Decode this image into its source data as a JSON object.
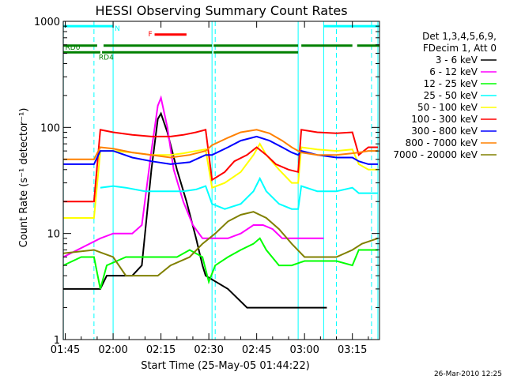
{
  "title": "HESSI Observing Summary Count Rates",
  "xlabel": "Start Time (25-May-05 01:44:22)",
  "ylabel": "Count Rate (s⁻¹ detector⁻¹)",
  "timestamp": "26-Mar-2010 12:25",
  "legend_header": [
    "Det 1,3,4,5,6,9,",
    "FDecim 1, Att 0"
  ],
  "chart_data": {
    "type": "line",
    "title": "HESSI Observing Summary Count Rates",
    "xlabel": "Start Time (25-May-05 01:44:22)",
    "ylabel": "Count Rate (s⁻¹ detector⁻¹)",
    "yscale": "log",
    "ylim": [
      1,
      1000
    ],
    "xlim_minutes": [
      104.37,
      203.5
    ],
    "x_unit": "minutes after 00:00 UT",
    "xticks": [
      {
        "label": "01:45",
        "t": 105
      },
      {
        "label": "02:00",
        "t": 120
      },
      {
        "label": "02:15",
        "t": 135
      },
      {
        "label": "02:30",
        "t": 150
      },
      {
        "label": "02:45",
        "t": 165
      },
      {
        "label": "03:00",
        "t": 180
      },
      {
        "label": "03:15",
        "t": 195
      }
    ],
    "yticks": [
      {
        "label": "1",
        "v": 1
      },
      {
        "label": "10",
        "v": 10
      },
      {
        "label": "100",
        "v": 100
      },
      {
        "label": "1000",
        "v": 1000
      }
    ],
    "legend_position": "right",
    "series": [
      {
        "name": "3 - 6 keV",
        "color": "#000000",
        "points": [
          [
            104.4,
            3
          ],
          [
            116,
            3
          ],
          [
            118,
            4
          ],
          [
            122,
            4
          ],
          [
            126,
            4
          ],
          [
            129,
            5
          ],
          [
            132,
            40
          ],
          [
            134,
            120
          ],
          [
            135,
            135
          ],
          [
            137,
            90
          ],
          [
            140,
            40
          ],
          [
            143,
            20
          ],
          [
            146,
            9
          ],
          [
            148,
            5
          ],
          [
            149,
            4
          ],
          [
            156,
            3
          ],
          [
            162,
            2
          ],
          [
            168,
            2
          ],
          [
            172,
            2
          ],
          [
            176,
            2
          ],
          [
            180,
            2
          ],
          [
            184,
            2
          ],
          [
            187,
            2
          ]
        ]
      },
      {
        "name": "6 - 12 keV",
        "color": "#ff00ff",
        "points": [
          [
            104.4,
            6
          ],
          [
            116,
            9
          ],
          [
            120,
            10
          ],
          [
            126,
            10
          ],
          [
            129,
            12
          ],
          [
            132,
            60
          ],
          [
            134,
            160
          ],
          [
            135,
            190
          ],
          [
            137,
            100
          ],
          [
            139,
            40
          ],
          [
            142,
            20
          ],
          [
            145,
            12
          ],
          [
            148,
            9
          ],
          [
            152,
            9
          ],
          [
            156,
            9
          ],
          [
            160,
            10
          ],
          [
            164,
            12
          ],
          [
            167,
            12
          ],
          [
            170,
            11
          ],
          [
            173,
            9
          ],
          [
            176,
            9
          ],
          [
            180,
            9
          ],
          [
            186,
            9
          ]
        ]
      },
      {
        "name": "12 - 25 keV",
        "color": "#00ff00",
        "points": [
          [
            104.4,
            5
          ],
          [
            110,
            6
          ],
          [
            114,
            6
          ],
          [
            116,
            3
          ],
          [
            118,
            5
          ],
          [
            124,
            6
          ],
          [
            130,
            6
          ],
          [
            136,
            6
          ],
          [
            140,
            6
          ],
          [
            144,
            7
          ],
          [
            148,
            6
          ],
          [
            150,
            3.5
          ],
          [
            152,
            5
          ],
          [
            156,
            6
          ],
          [
            160,
            7
          ],
          [
            164,
            8
          ],
          [
            166,
            9
          ],
          [
            168,
            7
          ],
          [
            172,
            5
          ],
          [
            176,
            5
          ],
          [
            180,
            5.5
          ],
          [
            184,
            5.5
          ],
          [
            190,
            5.5
          ],
          [
            195,
            5
          ],
          [
            197,
            7
          ],
          [
            203,
            7
          ]
        ]
      },
      {
        "name": "25 - 50 keV",
        "color": "#00ffff",
        "points": [
          [
            116,
            27
          ],
          [
            120,
            28
          ],
          [
            124,
            27
          ],
          [
            130,
            25
          ],
          [
            136,
            25
          ],
          [
            142,
            25
          ],
          [
            146,
            26
          ],
          [
            149,
            28
          ],
          [
            151,
            19
          ],
          [
            155,
            17
          ],
          [
            160,
            19
          ],
          [
            164,
            25
          ],
          [
            166,
            33
          ],
          [
            168,
            25
          ],
          [
            172,
            19
          ],
          [
            176,
            17
          ],
          [
            178,
            17
          ],
          [
            179,
            28
          ],
          [
            184,
            25
          ],
          [
            190,
            25
          ],
          [
            195,
            27
          ],
          [
            197,
            24
          ],
          [
            203,
            24
          ]
        ]
      },
      {
        "name": "50 - 100 keV",
        "color": "#ffff00",
        "points": [
          [
            104.4,
            14
          ],
          [
            114,
            14
          ],
          [
            116,
            60
          ],
          [
            120,
            60
          ],
          [
            126,
            58
          ],
          [
            132,
            55
          ],
          [
            138,
            55
          ],
          [
            142,
            57
          ],
          [
            146,
            60
          ],
          [
            149,
            62
          ],
          [
            151,
            27
          ],
          [
            155,
            30
          ],
          [
            160,
            38
          ],
          [
            164,
            55
          ],
          [
            166,
            70
          ],
          [
            168,
            55
          ],
          [
            172,
            40
          ],
          [
            176,
            30
          ],
          [
            178,
            30
          ],
          [
            179,
            65
          ],
          [
            184,
            62
          ],
          [
            190,
            60
          ],
          [
            195,
            62
          ],
          [
            197,
            45
          ],
          [
            200,
            40
          ],
          [
            203,
            40
          ]
        ]
      },
      {
        "name": "100 - 300 keV",
        "color": "#ff0000",
        "points": [
          [
            104.4,
            20
          ],
          [
            114,
            20
          ],
          [
            116,
            95
          ],
          [
            120,
            90
          ],
          [
            126,
            85
          ],
          [
            132,
            82
          ],
          [
            138,
            82
          ],
          [
            142,
            85
          ],
          [
            146,
            90
          ],
          [
            149,
            95
          ],
          [
            151,
            32
          ],
          [
            155,
            38
          ],
          [
            158,
            48
          ],
          [
            162,
            55
          ],
          [
            165,
            65
          ],
          [
            168,
            55
          ],
          [
            171,
            45
          ],
          [
            175,
            40
          ],
          [
            178,
            38
          ],
          [
            179,
            95
          ],
          [
            184,
            90
          ],
          [
            190,
            88
          ],
          [
            195,
            90
          ],
          [
            197,
            55
          ],
          [
            200,
            65
          ],
          [
            203,
            65
          ]
        ]
      },
      {
        "name": "300 - 800 keV",
        "color": "#0000ff",
        "points": [
          [
            104.4,
            45
          ],
          [
            114,
            45
          ],
          [
            116,
            60
          ],
          [
            120,
            60
          ],
          [
            126,
            52
          ],
          [
            132,
            48
          ],
          [
            138,
            45
          ],
          [
            144,
            47
          ],
          [
            149,
            55
          ],
          [
            151,
            55
          ],
          [
            156,
            65
          ],
          [
            160,
            75
          ],
          [
            165,
            82
          ],
          [
            169,
            75
          ],
          [
            173,
            65
          ],
          [
            176,
            58
          ],
          [
            178,
            55
          ],
          [
            179,
            60
          ],
          [
            184,
            55
          ],
          [
            190,
            52
          ],
          [
            195,
            52
          ],
          [
            197,
            48
          ],
          [
            200,
            45
          ],
          [
            203,
            45
          ]
        ]
      },
      {
        "name": "800 - 7000 keV",
        "color": "#ff8000",
        "points": [
          [
            104.4,
            50
          ],
          [
            114,
            50
          ],
          [
            116,
            65
          ],
          [
            120,
            63
          ],
          [
            126,
            58
          ],
          [
            132,
            55
          ],
          [
            138,
            52
          ],
          [
            144,
            55
          ],
          [
            149,
            60
          ],
          [
            151,
            68
          ],
          [
            156,
            80
          ],
          [
            160,
            90
          ],
          [
            165,
            95
          ],
          [
            169,
            88
          ],
          [
            173,
            75
          ],
          [
            176,
            65
          ],
          [
            178,
            60
          ],
          [
            179,
            58
          ],
          [
            184,
            55
          ],
          [
            190,
            55
          ],
          [
            195,
            57
          ],
          [
            197,
            58
          ],
          [
            200,
            60
          ],
          [
            203,
            60
          ]
        ]
      },
      {
        "name": "7000 - 20000 keV",
        "color": "#808000",
        "points": [
          [
            104.4,
            6.5
          ],
          [
            114,
            7
          ],
          [
            120,
            6
          ],
          [
            124,
            4
          ],
          [
            130,
            4
          ],
          [
            134,
            4
          ],
          [
            138,
            5
          ],
          [
            144,
            6
          ],
          [
            148,
            8
          ],
          [
            152,
            10
          ],
          [
            156,
            13
          ],
          [
            160,
            15
          ],
          [
            164,
            16
          ],
          [
            168,
            14
          ],
          [
            172,
            11
          ],
          [
            176,
            8
          ],
          [
            180,
            6
          ],
          [
            184,
            6
          ],
          [
            190,
            6
          ],
          [
            195,
            7
          ],
          [
            198,
            8
          ],
          [
            203,
            9
          ]
        ]
      }
    ],
    "annotations": {
      "flags": [
        {
          "label": "N",
          "color": "#00ffff",
          "segments": [
            [
              104.4,
              120
            ],
            [
              186,
              203.5
            ]
          ],
          "level": 900
        },
        {
          "label": "F",
          "color": "#ff0000",
          "segments": [
            [
              133,
              143
            ]
          ],
          "level": 750
        },
        {
          "label": "RD0",
          "color": "#008000",
          "segments": [
            [
              104.4,
              115
            ],
            [
              117,
              151
            ],
            [
              151.5,
              178
            ],
            [
              179,
              195
            ],
            [
              196.5,
              203.5
            ]
          ],
          "level": 590
        },
        {
          "label": "RD4",
          "color": "#008000",
          "segments": [
            [
              104.4,
              116
            ],
            [
              116.5,
              151
            ],
            [
              151.5,
              178
            ]
          ],
          "level": 510
        }
      ],
      "vertical_lines_solid": [
        104.4,
        120,
        151,
        178,
        186,
        203
      ],
      "vertical_lines_dashed": [
        114,
        152,
        190,
        201
      ]
    }
  }
}
